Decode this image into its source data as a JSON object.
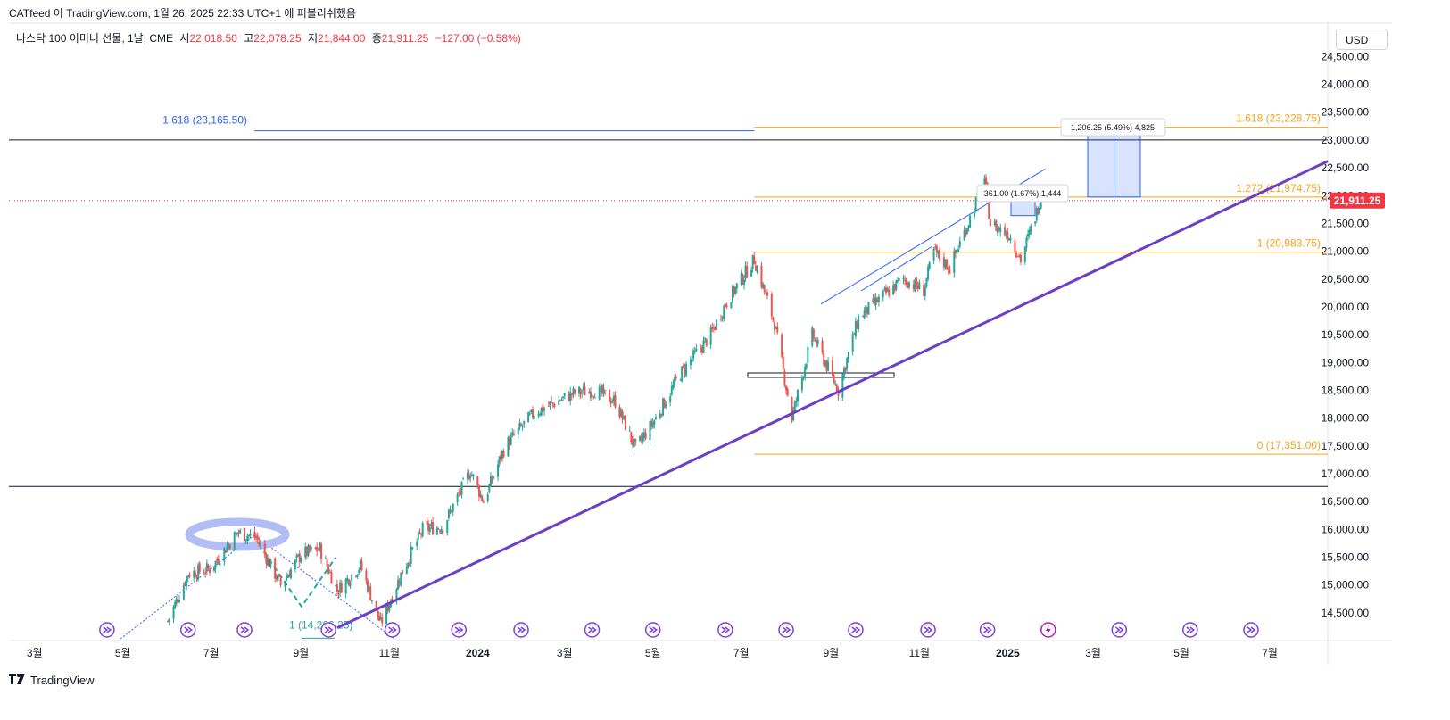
{
  "header": {
    "title": "CATfeed 이 TradingView.com, 1월 26, 2025 22:33 UTC+1 에 퍼블리쉬했음"
  },
  "symbol": {
    "name": "나스닥 100 이미니 선물, 1날, CME",
    "open_label": "시",
    "open_value": "22,018.50",
    "high_label": "고",
    "high_value": "22,078.25",
    "low_label": "저",
    "low_value": "21,844.00",
    "close_label": "종",
    "close_value": "21,911.25",
    "change_value": "−127.00 (−0.58%)"
  },
  "currency": "USD",
  "footer": {
    "brand": "TradingView",
    "logo_icon": "tradingview-logo-icon"
  },
  "colors": {
    "up": "#26a69a",
    "down": "#ef5350",
    "fib": "#f7a21b",
    "trend": "#6c3fc4",
    "channel": "#2962ff",
    "price_tag": "#f23645"
  },
  "chart_data": {
    "type": "candlestick",
    "y_axis": {
      "ylim": [
        14000,
        25100
      ],
      "ticks": [
        "14,500.00",
        "15,000.00",
        "15,500.00",
        "16,000.00",
        "16,500.00",
        "17,000.00",
        "17,500.00",
        "18,000.00",
        "18,500.00",
        "19,000.00",
        "19,500.00",
        "20,000.00",
        "20,500.00",
        "21,000.00",
        "21,500.00",
        "22,000.00",
        "22,500.00",
        "23,000.00",
        "23,500.00",
        "24,000.00",
        "24,500.00"
      ],
      "tick_values": [
        14500,
        15000,
        15500,
        16000,
        16500,
        17000,
        17500,
        18000,
        18500,
        19000,
        19500,
        20000,
        20500,
        21000,
        21500,
        22000,
        22500,
        23000,
        23500,
        24000,
        24500
      ]
    },
    "x_axis": {
      "xlim": [
        "2023-02-15",
        "2025-08-10"
      ],
      "labels": [
        {
          "date": "2023-03-01",
          "text": "3월",
          "bold": false
        },
        {
          "date": "2023-05-01",
          "text": "5월",
          "bold": false
        },
        {
          "date": "2023-07-01",
          "text": "7월",
          "bold": false
        },
        {
          "date": "2023-09-01",
          "text": "9월",
          "bold": false
        },
        {
          "date": "2023-11-01",
          "text": "11월",
          "bold": false
        },
        {
          "date": "2024-01-01",
          "text": "2024",
          "bold": true
        },
        {
          "date": "2024-03-01",
          "text": "3월",
          "bold": false
        },
        {
          "date": "2024-05-01",
          "text": "5월",
          "bold": false
        },
        {
          "date": "2024-07-01",
          "text": "7월",
          "bold": false
        },
        {
          "date": "2024-09-01",
          "text": "9월",
          "bold": false
        },
        {
          "date": "2024-11-01",
          "text": "11월",
          "bold": false
        },
        {
          "date": "2025-01-01",
          "text": "2025",
          "bold": true
        },
        {
          "date": "2025-03-01",
          "text": "3월",
          "bold": false
        },
        {
          "date": "2025-05-01",
          "text": "5월",
          "bold": false
        },
        {
          "date": "2025-07-01",
          "text": "7월",
          "bold": false
        }
      ]
    },
    "price_path": [
      [
        "2023-06-01",
        14350
      ],
      [
        "2023-06-15",
        15200
      ],
      [
        "2023-07-01",
        15300
      ],
      [
        "2023-07-19",
        15950
      ],
      [
        "2023-08-01",
        15850
      ],
      [
        "2023-08-18",
        15000
      ],
      [
        "2023-09-01",
        15550
      ],
      [
        "2023-09-14",
        15650
      ],
      [
        "2023-09-26",
        14900
      ],
      [
        "2023-10-12",
        15350
      ],
      [
        "2023-10-26",
        14300
      ],
      [
        "2023-11-10",
        15250
      ],
      [
        "2023-11-24",
        16000
      ],
      [
        "2023-12-08",
        16050
      ],
      [
        "2023-12-27",
        17050
      ],
      [
        "2024-01-05",
        16500
      ],
      [
        "2024-01-20",
        17500
      ],
      [
        "2024-02-09",
        18100
      ],
      [
        "2024-03-08",
        18450
      ],
      [
        "2024-03-22",
        18500
      ],
      [
        "2024-04-05",
        18300
      ],
      [
        "2024-04-19",
        17450
      ],
      [
        "2024-05-03",
        18000
      ],
      [
        "2024-05-20",
        18800
      ],
      [
        "2024-06-10",
        19500
      ],
      [
        "2024-06-20",
        20050
      ],
      [
        "2024-07-10",
        20850
      ],
      [
        "2024-07-24",
        19700
      ],
      [
        "2024-08-05",
        18000
      ],
      [
        "2024-08-19",
        19500
      ],
      [
        "2024-09-06",
        18500
      ],
      [
        "2024-09-20",
        19800
      ],
      [
        "2024-10-07",
        20200
      ],
      [
        "2024-10-21",
        20500
      ],
      [
        "2024-11-04",
        20300
      ],
      [
        "2024-11-11",
        21000
      ],
      [
        "2024-11-22",
        20700
      ],
      [
        "2024-12-06",
        21600
      ],
      [
        "2024-12-16",
        22300
      ],
      [
        "2024-12-20",
        21500
      ],
      [
        "2025-01-02",
        21300
      ],
      [
        "2025-01-10",
        20850
      ],
      [
        "2025-01-21",
        21700
      ],
      [
        "2025-01-24",
        22000
      ]
    ],
    "fibonacci_right": [
      {
        "level": "1.618",
        "price": 23228.75,
        "text": "1.618 (23,228.75)"
      },
      {
        "level": "1.272",
        "price": 21974.75,
        "text": "1.272 (21,974.75)"
      },
      {
        "level": "1",
        "price": 20983.75,
        "text": "1 (20,983.75)"
      },
      {
        "level": "0",
        "price": 17351.0,
        "text": "0 (17,351.00)"
      }
    ],
    "fibonacci_left": [
      {
        "level": "1.618",
        "price": 23165.5,
        "text": "1.618 (23,165.50)"
      },
      {
        "level": "1",
        "price": 14266.25,
        "text": "1 (14,266.25)"
      }
    ],
    "horizontal_lines": [
      23000,
      16770
    ],
    "current_price": {
      "value": 21911.25,
      "text": "21,911.25"
    },
    "measure_large": {
      "text": "1,206.25 (5.49%) 4,825",
      "from": 21974.75,
      "to": 23181.0
    },
    "measure_small": {
      "text": "361.00 (1.67%) 1,444",
      "from": 21640,
      "to": 22001
    },
    "trendline": {
      "from": [
        "2023-09-26",
        14230
      ],
      "to": [
        "2025-07-15",
        22300
      ]
    },
    "channel_line": {
      "from": [
        "2024-08-25",
        20050
      ],
      "to": [
        "2025-01-27",
        22480
      ]
    },
    "event_markers": [
      "2023-04-20",
      "2023-06-15",
      "2023-07-24",
      "2023-09-20",
      "2023-11-03",
      "2023-12-19",
      "2024-01-31",
      "2024-03-20",
      "2024-05-01",
      "2024-06-20",
      "2024-08-01",
      "2024-09-18",
      "2024-11-07",
      "2024-12-18",
      "2025-01-29",
      "2025-03-19",
      "2025-05-07",
      "2025-06-18"
    ],
    "event_marker_special": "2025-01-29"
  }
}
